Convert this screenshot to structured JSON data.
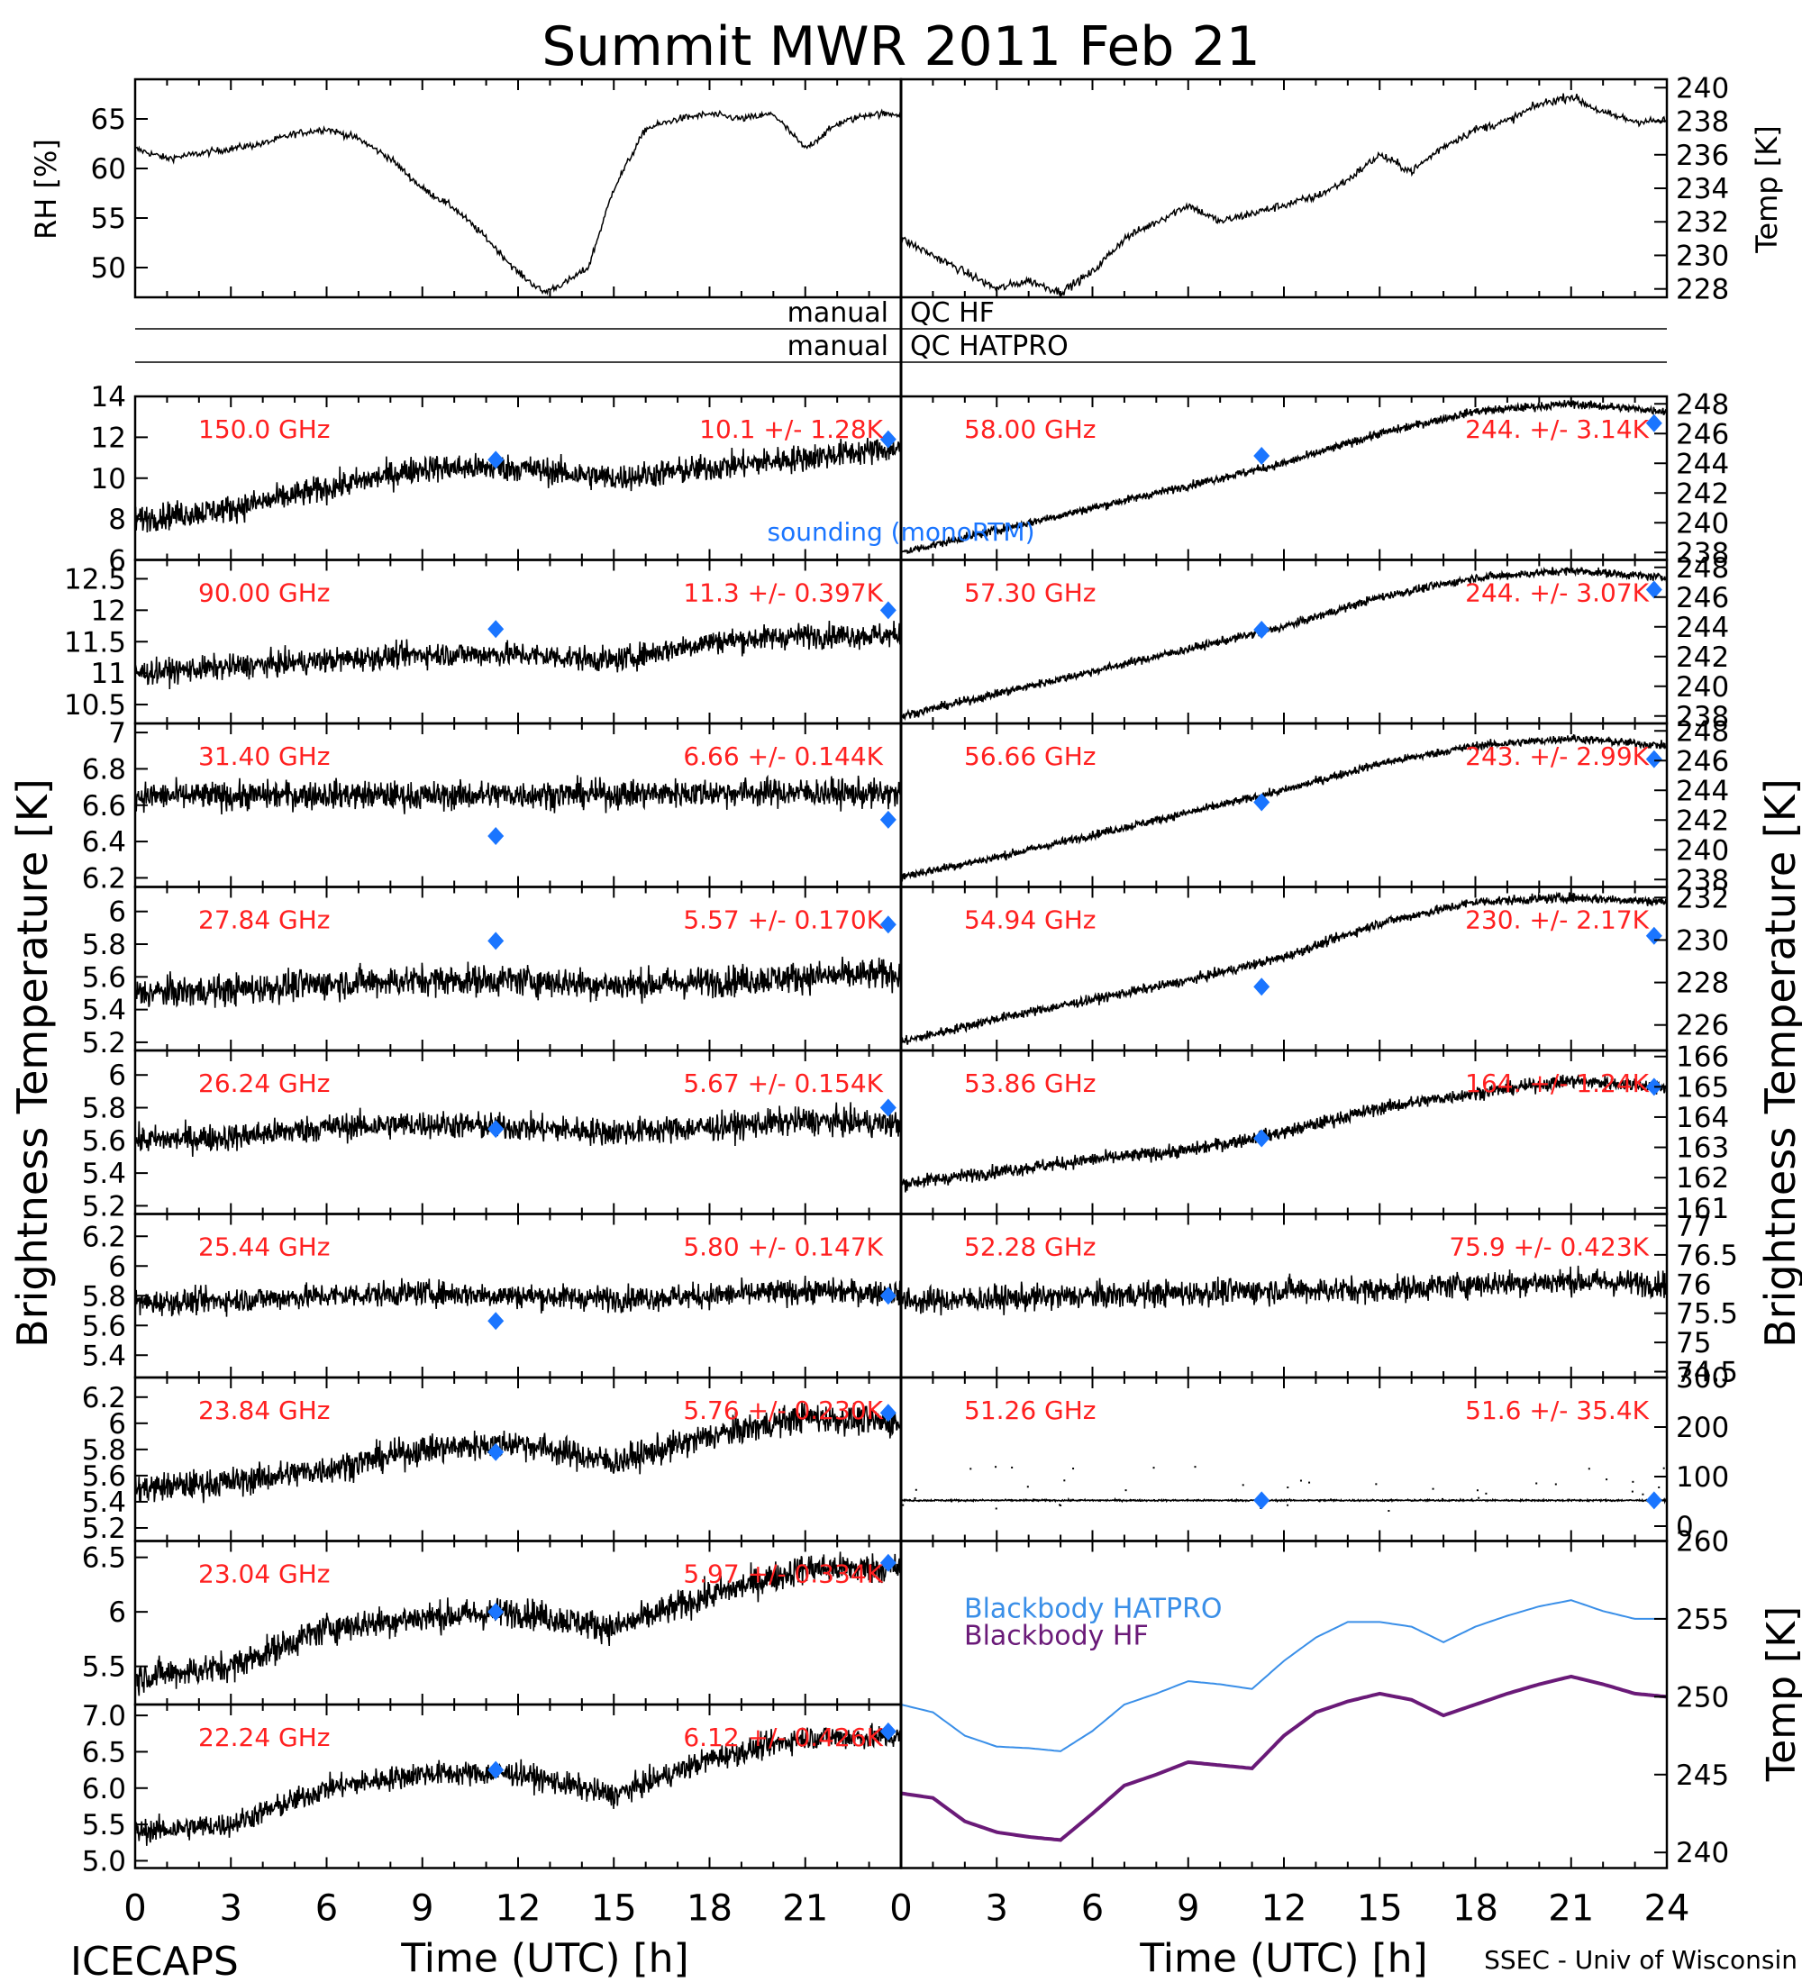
{
  "title": "Summit MWR 2011 Feb 21",
  "footer_left": "ICECAPS",
  "footer_right": "SSEC - Univ of Wisconsin",
  "x_label": "Time (UTC) [h]",
  "x_ticks": [
    "0",
    "3",
    "6",
    "9",
    "12",
    "15",
    "18",
    "21",
    "24"
  ],
  "left_axis_label": "Brightness Temperature [K]",
  "right_axis_label": "Brightness Temperature [K]",
  "qc_rows": [
    {
      "left": "manual",
      "right": "QC HF"
    },
    {
      "left": "manual",
      "right": "QC HATPRO"
    }
  ],
  "sounding_label": "sounding (monoRTM)",
  "colors": {
    "axis": "#000000",
    "channel_text": "#ff2020",
    "sounding": "#1a75ff",
    "hatpro_line": "#3a8fe8",
    "hf_line": "#6a1a78"
  },
  "chart_data": [
    {
      "id": "rh",
      "type": "line",
      "ylabel": "RH [%]",
      "ylim": [
        47,
        69
      ],
      "yticks": [
        50,
        55,
        60,
        65
      ],
      "x": [
        0,
        1,
        2,
        3,
        4,
        5,
        6,
        7,
        8,
        9,
        10,
        11,
        12,
        12.8,
        13.5,
        14.2,
        15,
        16,
        17,
        18,
        19,
        20,
        21,
        22,
        23,
        24
      ],
      "values": [
        62,
        61,
        61.5,
        62,
        62.5,
        63.5,
        64,
        63,
        61,
        58,
        56,
        53,
        49.5,
        47.5,
        48.5,
        50,
        58,
        64,
        65,
        65.5,
        65,
        65.5,
        62,
        64.5,
        65.5,
        65.5
      ]
    },
    {
      "id": "temp",
      "type": "line",
      "ylabel": "Temp [K]",
      "ylim": [
        227.5,
        240.5
      ],
      "yticks": [
        228,
        230,
        232,
        234,
        236,
        238,
        240
      ],
      "x": [
        0,
        1,
        2,
        3,
        4,
        5,
        6,
        7,
        8,
        9,
        10,
        11,
        12,
        13,
        14,
        15,
        16,
        17,
        18,
        19,
        20,
        21,
        22,
        23,
        24
      ],
      "values": [
        231,
        230,
        229,
        228,
        228.5,
        227.8,
        229,
        231,
        232,
        233,
        232,
        232.5,
        233,
        233.5,
        234.5,
        236,
        235,
        236.5,
        237.5,
        238,
        239,
        239.5,
        238.5,
        238,
        238
      ]
    },
    {
      "id": "ch150",
      "type": "scatter",
      "channel": "150.0 GHz",
      "stat": "10.1 +/- 1.28K",
      "ylim": [
        6,
        14
      ],
      "yticks": [
        6,
        8,
        10,
        12,
        14
      ],
      "x": [
        0,
        3,
        6,
        9,
        12,
        15,
        18,
        21,
        24
      ],
      "values": [
        8,
        8.5,
        9.5,
        10.5,
        10.5,
        10,
        10.5,
        11,
        11.5
      ],
      "noise": 1.2,
      "sounding": [
        {
          "x": 11.3,
          "y": 10.9
        },
        {
          "x": 23.6,
          "y": 11.9
        }
      ]
    },
    {
      "id": "ch90",
      "type": "scatter",
      "channel": "90.00 GHz",
      "stat": "11.3 +/- 0.397K",
      "ylim": [
        10.2,
        12.8
      ],
      "yticks": [
        10.5,
        11.0,
        11.5,
        12.0,
        12.5
      ],
      "x": [
        0,
        3,
        6,
        9,
        12,
        15,
        18,
        21,
        24
      ],
      "values": [
        11.0,
        11.1,
        11.2,
        11.3,
        11.3,
        11.2,
        11.5,
        11.6,
        11.6
      ],
      "noise": 0.35,
      "sounding": [
        {
          "x": 11.3,
          "y": 11.7
        },
        {
          "x": 23.6,
          "y": 12.0
        }
      ]
    },
    {
      "id": "ch31",
      "type": "scatter",
      "channel": "31.40 GHz",
      "stat": "6.66 +/- 0.144K",
      "ylim": [
        6.15,
        7.05
      ],
      "yticks": [
        6.2,
        6.4,
        6.6,
        6.8,
        7.0
      ],
      "x": [
        0,
        3,
        6,
        9,
        12,
        15,
        18,
        21,
        24
      ],
      "values": [
        6.65,
        6.65,
        6.66,
        6.65,
        6.66,
        6.66,
        6.67,
        6.67,
        6.66
      ],
      "noise": 0.14,
      "sounding": [
        {
          "x": 11.3,
          "y": 6.43
        },
        {
          "x": 23.6,
          "y": 6.52
        }
      ]
    },
    {
      "id": "ch27",
      "type": "scatter",
      "channel": "27.84 GHz",
      "stat": "5.57 +/- 0.170K",
      "ylim": [
        5.15,
        6.15
      ],
      "yticks": [
        5.2,
        5.4,
        5.6,
        5.8,
        6.0
      ],
      "x": [
        0,
        3,
        6,
        9,
        12,
        15,
        18,
        21,
        24
      ],
      "values": [
        5.5,
        5.52,
        5.56,
        5.58,
        5.58,
        5.55,
        5.57,
        5.6,
        5.62
      ],
      "noise": 0.17,
      "sounding": [
        {
          "x": 11.3,
          "y": 5.82
        },
        {
          "x": 23.6,
          "y": 5.92
        }
      ]
    },
    {
      "id": "ch26",
      "type": "scatter",
      "channel": "26.24 GHz",
      "stat": "5.67 +/- 0.154K",
      "ylim": [
        5.15,
        6.15
      ],
      "yticks": [
        5.2,
        5.4,
        5.6,
        5.8,
        6.0
      ],
      "x": [
        0,
        3,
        6,
        9,
        12,
        15,
        18,
        21,
        24
      ],
      "values": [
        5.6,
        5.62,
        5.68,
        5.7,
        5.68,
        5.65,
        5.68,
        5.72,
        5.7
      ],
      "noise": 0.15,
      "sounding": [
        {
          "x": 11.3,
          "y": 5.67
        },
        {
          "x": 23.6,
          "y": 5.8
        }
      ]
    },
    {
      "id": "ch25",
      "type": "scatter",
      "channel": "25.44 GHz",
      "stat": "5.80 +/- 0.147K",
      "ylim": [
        5.25,
        6.35
      ],
      "yticks": [
        5.4,
        5.6,
        5.8,
        6.0,
        6.2
      ],
      "x": [
        0,
        3,
        6,
        9,
        12,
        15,
        18,
        21,
        24
      ],
      "values": [
        5.75,
        5.77,
        5.8,
        5.82,
        5.8,
        5.78,
        5.8,
        5.83,
        5.82
      ],
      "noise": 0.15,
      "sounding": [
        {
          "x": 11.3,
          "y": 5.63
        },
        {
          "x": 23.6,
          "y": 5.8
        }
      ]
    },
    {
      "id": "ch23_84",
      "type": "scatter",
      "channel": "23.84 GHz",
      "stat": "5.76 +/- 0.230K",
      "ylim": [
        5.1,
        6.35
      ],
      "yticks": [
        5.2,
        5.4,
        5.6,
        5.8,
        6.0,
        6.2
      ],
      "x": [
        0,
        3,
        6,
        9,
        12,
        15,
        18,
        21,
        24
      ],
      "values": [
        5.5,
        5.55,
        5.65,
        5.8,
        5.85,
        5.7,
        5.9,
        6.05,
        6.0
      ],
      "noise": 0.2,
      "sounding": [
        {
          "x": 11.3,
          "y": 5.78
        },
        {
          "x": 23.6,
          "y": 6.08
        }
      ]
    },
    {
      "id": "ch23_04",
      "type": "scatter",
      "channel": "23.04 GHz",
      "stat": "5.97 +/- 0.334K",
      "ylim": [
        5.15,
        6.65
      ],
      "yticks": [
        5.5,
        6.0,
        6.5
      ],
      "x": [
        0,
        3,
        6,
        9,
        12,
        15,
        18,
        21,
        24
      ],
      "values": [
        5.4,
        5.5,
        5.85,
        5.95,
        6.0,
        5.85,
        6.15,
        6.4,
        6.4
      ],
      "noise": 0.25,
      "sounding": [
        {
          "x": 11.3,
          "y": 6.0
        },
        {
          "x": 23.6,
          "y": 6.45
        }
      ]
    },
    {
      "id": "ch22",
      "type": "scatter",
      "channel": "22.24 GHz",
      "stat": "6.12 +/- 0.426K",
      "ylim": [
        4.9,
        7.15
      ],
      "yticks": [
        5.0,
        5.5,
        6.0,
        6.5,
        7.0
      ],
      "x": [
        0,
        3,
        6,
        9,
        12,
        15,
        18,
        21,
        24
      ],
      "values": [
        5.4,
        5.5,
        6.0,
        6.2,
        6.2,
        5.9,
        6.4,
        6.7,
        6.7
      ],
      "noise": 0.3,
      "sounding": [
        {
          "x": 11.3,
          "y": 6.25
        },
        {
          "x": 23.6,
          "y": 6.78
        }
      ]
    },
    {
      "id": "ch58",
      "type": "scatter",
      "channel": "58.00 GHz",
      "stat": "244. +/- 3.14K",
      "ylim": [
        237.5,
        248.5
      ],
      "yticks": [
        238,
        240,
        242,
        244,
        246,
        248
      ],
      "x": [
        0,
        3,
        6,
        9,
        12,
        15,
        18,
        21,
        24
      ],
      "values": [
        238,
        239.5,
        241,
        242.5,
        244,
        246,
        247.5,
        248,
        247.5
      ],
      "noise": 0.5,
      "sounding": [
        {
          "x": 11.3,
          "y": 244.5
        },
        {
          "x": 23.6,
          "y": 246.7
        }
      ]
    },
    {
      "id": "ch57_30",
      "type": "scatter",
      "channel": "57.30 GHz",
      "stat": "244. +/- 3.07K",
      "ylim": [
        237.5,
        248.5
      ],
      "yticks": [
        238,
        240,
        242,
        244,
        246,
        248
      ],
      "x": [
        0,
        3,
        6,
        9,
        12,
        15,
        18,
        21,
        24
      ],
      "values": [
        238,
        239.5,
        241,
        242.5,
        244,
        246,
        247.3,
        247.8,
        247.3
      ],
      "noise": 0.5,
      "sounding": [
        {
          "x": 11.3,
          "y": 243.8
        },
        {
          "x": 23.6,
          "y": 246.5
        }
      ]
    },
    {
      "id": "ch56_66",
      "type": "scatter",
      "channel": "56.66 GHz",
      "stat": "243. +/- 2.99K",
      "ylim": [
        237.5,
        248.5
      ],
      "yticks": [
        238,
        240,
        242,
        244,
        246,
        248
      ],
      "x": [
        0,
        3,
        6,
        9,
        12,
        15,
        18,
        21,
        24
      ],
      "values": [
        238.2,
        239.5,
        241,
        242.5,
        244,
        245.8,
        247,
        247.5,
        247
      ],
      "noise": 0.5,
      "sounding": [
        {
          "x": 11.3,
          "y": 243.2
        },
        {
          "x": 23.6,
          "y": 246.1
        }
      ]
    },
    {
      "id": "ch54_94",
      "type": "scatter",
      "channel": "54.94 GHz",
      "stat": "230. +/- 2.17K",
      "ylim": [
        224.8,
        232.5
      ],
      "yticks": [
        226,
        228,
        230,
        232
      ],
      "x": [
        0,
        3,
        6,
        9,
        12,
        15,
        18,
        21,
        24
      ],
      "values": [
        225.2,
        226.3,
        227.2,
        228.1,
        229.2,
        230.8,
        231.8,
        232,
        231.8
      ],
      "noise": 0.4,
      "sounding": [
        {
          "x": 11.3,
          "y": 227.8
        },
        {
          "x": 23.6,
          "y": 230.2
        }
      ]
    },
    {
      "id": "ch53_86",
      "type": "scatter",
      "channel": "53.86 GHz",
      "stat": "164. +/- 1.24K",
      "ylim": [
        160.8,
        166.2
      ],
      "yticks": [
        161,
        162,
        163,
        164,
        165,
        166
      ],
      "x": [
        0,
        3,
        6,
        9,
        12,
        15,
        18,
        21,
        24
      ],
      "values": [
        161.8,
        162.2,
        162.6,
        162.9,
        163.5,
        164.3,
        164.8,
        165.2,
        165
      ],
      "noise": 0.4,
      "sounding": [
        {
          "x": 11.3,
          "y": 163.3
        },
        {
          "x": 23.6,
          "y": 165.0
        }
      ]
    },
    {
      "id": "ch52_28",
      "type": "scatter",
      "channel": "52.28 GHz",
      "stat": "75.9 +/- 0.423K",
      "ylim": [
        74.4,
        77.2
      ],
      "yticks": [
        74.5,
        75.0,
        75.5,
        76.0,
        76.5,
        77.0
      ],
      "x": [
        0,
        3,
        6,
        9,
        12,
        15,
        18,
        21,
        24
      ],
      "values": [
        75.7,
        75.75,
        75.8,
        75.85,
        75.9,
        75.9,
        76.0,
        76.05,
        76.0
      ],
      "noise": 0.4,
      "sounding": []
    },
    {
      "id": "ch51_26",
      "type": "scatter",
      "channel": "51.26 GHz",
      "stat": "51.6 +/- 35.4K",
      "ylim": [
        -30,
        300
      ],
      "yticks": [
        0,
        100,
        200,
        300
      ],
      "x": [
        0,
        3,
        6,
        9,
        12,
        15,
        18,
        21,
        24
      ],
      "values": [
        52,
        52,
        52,
        52,
        52,
        52,
        52,
        52,
        52
      ],
      "noise": 3,
      "sounding": [
        {
          "x": 11.3,
          "y": 52
        },
        {
          "x": 23.6,
          "y": 52
        }
      ]
    },
    {
      "id": "blackbody",
      "type": "line",
      "ylabel": "Temp [K]",
      "ylim": [
        239,
        260
      ],
      "yticks": [
        240,
        245,
        250,
        255,
        260
      ],
      "series": [
        {
          "name": "Blackbody HATPRO",
          "x": [
            0,
            1,
            2,
            3,
            4,
            5,
            6,
            7,
            8,
            9,
            10,
            11,
            12,
            13,
            14,
            15,
            16,
            17,
            18,
            19,
            20,
            21,
            22,
            23,
            24
          ],
          "values": [
            249.5,
            249,
            247.5,
            246.8,
            246.7,
            246.5,
            247.8,
            249.5,
            250.2,
            251,
            250.8,
            250.5,
            252.3,
            253.8,
            254.8,
            254.8,
            254.5,
            253.5,
            254.5,
            255.2,
            255.8,
            256.2,
            255.5,
            255,
            255
          ]
        },
        {
          "name": "Blackbody HF",
          "x": [
            0,
            1,
            2,
            3,
            4,
            5,
            6,
            7,
            8,
            9,
            10,
            11,
            12,
            13,
            14,
            15,
            16,
            17,
            18,
            19,
            20,
            21,
            22,
            23,
            24
          ],
          "values": [
            243.8,
            243.5,
            242,
            241.3,
            241,
            240.8,
            242.5,
            244.3,
            245,
            245.8,
            245.6,
            245.4,
            247.5,
            249,
            249.7,
            250.2,
            249.8,
            248.8,
            249.5,
            250.2,
            250.8,
            251.3,
            250.8,
            250.2,
            250
          ]
        }
      ]
    }
  ]
}
